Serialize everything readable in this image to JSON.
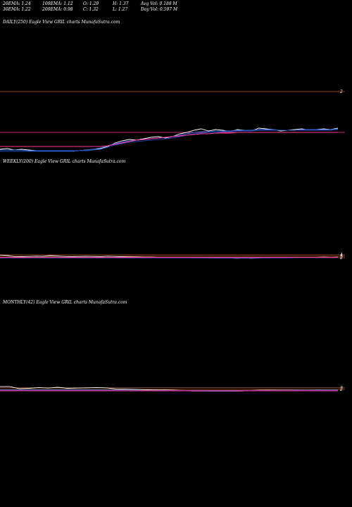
{
  "header": {
    "row1": [
      "20EMA: 1.24",
      "100EMA: 1.12",
      "O: 1.29",
      "H: 1.37",
      "Avg Vol: 0.188  M"
    ],
    "row2": [
      "30EMA: 1.22",
      "200EMA: 0.98",
      "C: 1.32",
      "L: 1.27",
      "Day Vol: 0.597  M"
    ]
  },
  "chart_data": [
    {
      "type": "line",
      "title": "DAILY(250) Eagle   View  GRIL  charts MunafaSutra.com",
      "y_ticks": [
        "2"
      ],
      "series": [
        {
          "values": [
            1.18,
            1.19,
            1.17,
            1.18,
            1.17,
            1.16,
            1.15,
            1.15,
            1.16,
            1.15,
            1.15,
            1.16,
            1.17,
            1.18,
            1.19,
            1.22,
            1.27,
            1.3,
            1.32,
            1.31,
            1.33,
            1.35,
            1.36,
            1.34,
            1.36,
            1.4,
            1.42,
            1.45,
            1.47,
            1.44,
            1.46,
            1.45,
            1.43,
            1.46,
            1.45,
            1.44,
            1.48,
            1.47,
            1.46,
            1.44,
            1.45,
            1.46,
            1.47,
            1.45,
            1.46,
            1.47,
            1.46,
            1.48
          ]
        },
        {
          "values": [
            1.17,
            1.17,
            1.17,
            1.17,
            1.16,
            1.16,
            1.16,
            1.16,
            1.16,
            1.16,
            1.16,
            1.16,
            1.17,
            1.18,
            1.2,
            1.23,
            1.26,
            1.28,
            1.3,
            1.31,
            1.32,
            1.33,
            1.34,
            1.35,
            1.36,
            1.38,
            1.4,
            1.42,
            1.43,
            1.43,
            1.44,
            1.44,
            1.44,
            1.45,
            1.45,
            1.45,
            1.46,
            1.46,
            1.46,
            1.45,
            1.45,
            1.45,
            1.46,
            1.46,
            1.46,
            1.46,
            1.46,
            1.47
          ]
        },
        {
          "values": [
            1.15,
            1.15,
            1.15,
            1.15,
            1.15,
            1.15,
            1.15,
            1.15,
            1.15,
            1.15,
            1.15,
            1.16,
            1.16,
            1.17,
            1.18,
            1.21,
            1.24,
            1.26,
            1.28,
            1.29,
            1.3,
            1.31,
            1.32,
            1.33,
            1.34,
            1.36,
            1.38,
            1.4,
            1.41,
            1.42,
            1.42,
            1.43,
            1.43,
            1.44,
            1.44,
            1.44,
            1.45,
            1.45,
            1.45,
            1.45,
            1.45,
            1.45,
            1.45,
            1.45,
            1.45,
            1.45,
            1.45,
            1.46
          ]
        },
        {
          "values": [
            1.22,
            1.22,
            1.22,
            1.22,
            1.22,
            1.22,
            1.22,
            1.22,
            1.22,
            1.22,
            1.22,
            1.22,
            1.22,
            1.22,
            1.22,
            1.23,
            1.25,
            1.27,
            1.29,
            1.31,
            1.32,
            1.33,
            1.34,
            1.35,
            1.36,
            1.37,
            1.38,
            1.39,
            1.4,
            1.4,
            1.41,
            1.41,
            1.41,
            1.42,
            1.42,
            1.42,
            1.42,
            1.42,
            1.42,
            1.42,
            1.42,
            1.42,
            1.42,
            1.42,
            1.42,
            1.42,
            1.42,
            1.42
          ]
        }
      ]
    },
    {
      "type": "line",
      "title": "WEEKLY(200) Eagle   View  GRIL  charts MunafaSutra.com",
      "y_ticks": [
        "4",
        "3",
        "2"
      ],
      "series": [
        {
          "values": [
            3.9,
            3.6,
            2.8,
            2.7,
            2.9,
            3.1,
            3.0,
            3.5,
            3.2,
            2.9,
            2.8,
            2.9,
            3.0,
            2.9,
            2.8,
            3.1,
            2.9,
            2.7,
            2.6,
            2.5,
            2.4,
            2.4,
            2.3,
            2.3,
            2.2,
            2.1,
            2.1,
            2.0,
            2.0,
            1.9,
            1.8,
            1.8,
            1.7,
            1.6,
            1.7,
            1.6,
            1.8,
            2.1,
            2.2,
            2.3,
            2.1,
            2.2,
            2.3,
            2.2,
            2.3,
            2.4,
            2.3,
            2.4
          ]
        },
        {
          "values": [
            2.1,
            2.1,
            2.1,
            2.1,
            2.1,
            2.1,
            2.1,
            2.1,
            2.1,
            2.1,
            2.1,
            2.1,
            2.1,
            2.1,
            2.1,
            2.1,
            2.1,
            2.1,
            2.1,
            2.1,
            2.1,
            2.1,
            2.1,
            2.0,
            2.0,
            2.0,
            2.0,
            1.9,
            1.9,
            1.9,
            1.9,
            1.8,
            1.8,
            1.8,
            1.8,
            1.8,
            1.9,
            1.9,
            2.0,
            2.0,
            2.1,
            2.1,
            2.1,
            2.2,
            2.2,
            2.2,
            2.2,
            2.3
          ]
        },
        {
          "values": [
            1.9,
            1.9,
            1.9,
            1.9,
            1.9,
            1.9,
            1.9,
            1.9,
            1.9,
            1.9,
            1.9,
            1.9,
            1.9,
            1.9,
            1.9,
            1.9,
            1.9,
            1.9,
            1.9,
            1.9,
            1.9,
            1.9,
            1.9,
            1.9,
            1.9,
            1.9,
            1.9,
            1.9,
            1.9,
            1.9,
            1.9,
            1.9,
            1.9,
            1.9,
            1.9,
            1.9,
            1.9,
            1.9,
            1.9,
            1.9,
            1.9,
            2.0,
            2.0,
            2.0,
            2.0,
            2.0,
            2.0,
            2.0
          ]
        },
        {
          "values": [
            2.2,
            2.2,
            2.2,
            2.2,
            2.2,
            2.2,
            2.2,
            2.2,
            2.2,
            2.2,
            2.2,
            2.2,
            2.2,
            2.2,
            2.2,
            2.2,
            2.2,
            2.2,
            2.2,
            2.2,
            2.2,
            2.2,
            2.2,
            2.2,
            2.2,
            2.2,
            2.2,
            2.2,
            2.2,
            2.2,
            2.2,
            2.2,
            2.2,
            2.2,
            2.2,
            2.2,
            2.2,
            2.2,
            2.2,
            2.2,
            2.2,
            2.2,
            2.2,
            2.2,
            2.2,
            2.2,
            2.2,
            2.2
          ]
        }
      ]
    },
    {
      "type": "line",
      "title": "MONTHLY(42) Eagle   View  GRIL  charts MunafaSutra.com",
      "y_ticks": [
        "3",
        "2"
      ],
      "series": [
        {
          "values": [
            4.3,
            4.3,
            3.5,
            3.6,
            3.9,
            3.7,
            4.0,
            3.6,
            3.7,
            3.8,
            3.9,
            3.8,
            3.4,
            3.3,
            3.2,
            3.1,
            3.0,
            3.0,
            2.9,
            2.8,
            2.6,
            2.6,
            2.5,
            2.5,
            2.5,
            2.6,
            2.8,
            2.9,
            2.9,
            2.9,
            2.9,
            2.9,
            2.95,
            3.0,
            2.95,
            3.0
          ]
        },
        {
          "values": [
            3.0,
            3.0,
            3.0,
            3.0,
            3.0,
            3.0,
            3.0,
            3.0,
            3.0,
            3.0,
            3.0,
            2.95,
            2.9,
            2.9,
            2.85,
            2.8,
            2.8,
            2.75,
            2.7,
            2.7,
            2.65,
            2.6,
            2.6,
            2.6,
            2.6,
            2.65,
            2.7,
            2.75,
            2.8,
            2.85,
            2.85,
            2.9,
            2.9,
            2.95,
            2.95,
            3.0
          ]
        },
        {
          "values": [
            2.8,
            2.8,
            2.8,
            2.8,
            2.8,
            2.8,
            2.8,
            2.8,
            2.8,
            2.8,
            2.8,
            2.8,
            2.8,
            2.8,
            2.8,
            2.8,
            2.8,
            2.8,
            2.8,
            2.8,
            2.8,
            2.8,
            2.8,
            2.8,
            2.8,
            2.8,
            2.8,
            2.8,
            2.8,
            2.8,
            2.8,
            2.8,
            2.8,
            2.8,
            2.8,
            2.8
          ]
        },
        {
          "values": [
            2.7,
            2.7,
            2.7,
            2.7,
            2.7,
            2.7,
            2.7,
            2.7,
            2.7,
            2.7,
            2.7,
            2.7,
            2.7,
            2.7,
            2.7,
            2.7,
            2.7,
            2.7,
            2.7,
            2.7,
            2.7,
            2.7,
            2.7,
            2.7,
            2.7,
            2.7,
            2.7,
            2.7,
            2.7,
            2.7,
            2.7,
            2.7,
            2.7,
            2.7,
            2.7,
            2.7
          ]
        }
      ]
    }
  ],
  "colors": {
    "price": "#ffffff",
    "ema_short": "#3a6bd6",
    "ema_long": "#1e3fa8",
    "ema_200": "#ff3b9a",
    "level": "#b8572c"
  }
}
